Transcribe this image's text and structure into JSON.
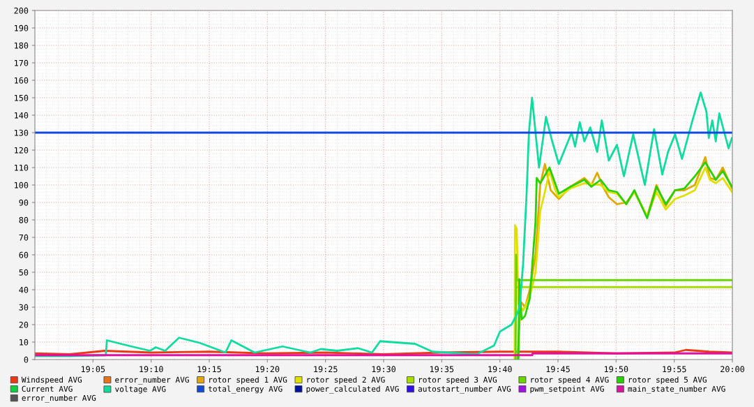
{
  "chart_data": {
    "type": "line",
    "xlim": [
      19.0,
      20.0
    ],
    "ylim": [
      0,
      200
    ],
    "xticks": [
      {
        "value": 19.0833,
        "label": "19:05"
      },
      {
        "value": 19.1667,
        "label": "19:10"
      },
      {
        "value": 19.25,
        "label": "19:15"
      },
      {
        "value": 19.3333,
        "label": "19:20"
      },
      {
        "value": 19.4167,
        "label": "19:25"
      },
      {
        "value": 19.5,
        "label": "19:30"
      },
      {
        "value": 19.5833,
        "label": "19:35"
      },
      {
        "value": 19.6667,
        "label": "19:40"
      },
      {
        "value": 19.75,
        "label": "19:45"
      },
      {
        "value": 19.8333,
        "label": "19:50"
      },
      {
        "value": 19.9167,
        "label": "19:55"
      },
      {
        "value": 20.0,
        "label": "20:00"
      }
    ],
    "yticks": [
      0,
      10,
      20,
      30,
      40,
      50,
      60,
      70,
      80,
      90,
      100,
      110,
      120,
      130,
      140,
      150,
      160,
      170,
      180,
      190,
      200
    ],
    "grid": true,
    "legend": "bottom",
    "series": [
      {
        "name": "Windspeed AVG",
        "color": "#ea3a14",
        "x": [
          19.0,
          19.05,
          19.1,
          19.1667,
          19.25,
          19.3333,
          19.4167,
          19.5,
          19.5833,
          19.6667,
          19.75,
          19.8333,
          19.9167,
          19.9333,
          19.9667,
          20.0
        ],
        "values": [
          3.5,
          3,
          5,
          4,
          4.5,
          3.5,
          4,
          3,
          4,
          4.5,
          4.5,
          3.5,
          4,
          5.5,
          4.5,
          4
        ]
      },
      {
        "name": "error_number AVG",
        "color": "#e87316",
        "values": [
          null
        ]
      },
      {
        "name": "rotor speed 1 AVG",
        "color": "#e0a800",
        "x": [
          19.6917,
          19.6967,
          19.7028,
          19.7095,
          19.7178,
          19.7245,
          19.7312,
          19.7395,
          19.7512,
          19.7678,
          19.7878,
          19.7978,
          19.8062,
          19.8145,
          19.8228,
          19.8345,
          19.8478,
          19.8595,
          19.8778,
          19.8912,
          19.9045,
          19.9178,
          19.9312,
          19.9462,
          19.9612,
          19.9678,
          19.9762,
          19.9862,
          19.9995
        ],
        "values": [
          0,
          33,
          30,
          40,
          60,
          100,
          112,
          97,
          92,
          99,
          104,
          100,
          107,
          99,
          93,
          89,
          90,
          96,
          82,
          100,
          88,
          97,
          97,
          100,
          116,
          104,
          103,
          110,
          98
        ]
      },
      {
        "name": "rotor speed 2 AVG",
        "color": "#e0e000",
        "x": [
          19.6878,
          19.6883,
          19.6908,
          19.6933,
          19.7,
          19.7095,
          19.7178,
          19.7245,
          19.7312,
          19.7378,
          19.7462,
          19.7512,
          19.7678,
          19.7878,
          19.8112,
          19.8228,
          19.8345,
          19.8478,
          19.8595,
          19.8778,
          19.8912,
          19.9045,
          19.9178,
          19.9312,
          19.9462,
          19.9612,
          19.9678,
          19.9762,
          19.9862,
          19.9995
        ],
        "values": [
          0,
          77,
          75,
          32,
          28,
          36,
          50,
          85,
          96,
          108,
          97,
          93,
          98,
          101,
          100,
          96,
          95,
          89,
          96,
          82,
          96,
          86,
          92,
          94,
          97,
          110,
          103,
          101,
          104,
          96
        ]
      },
      {
        "name": "rotor speed 3 AVG",
        "color": "#a8dc00",
        "x": [
          19.6908,
          20.0
        ],
        "values": [
          41.5,
          41.5
        ]
      },
      {
        "name": "rotor speed 4 AVG",
        "color": "#6ad400",
        "x": [
          19.6892,
          19.69,
          19.6908,
          20.0
        ],
        "values": [
          0,
          60,
          45.5,
          45.5
        ]
      },
      {
        "name": "rotor speed 5 AVG",
        "color": "#2ad000",
        "x": [
          19.6933,
          19.6945,
          19.6978,
          19.7028,
          19.7095,
          19.7178,
          19.7195,
          19.7245,
          19.7378,
          19.7512,
          19.7678,
          19.7878,
          19.7978,
          19.8112,
          19.8228,
          19.8345,
          19.8478,
          19.8595,
          19.8778,
          19.8912,
          19.9045,
          19.9178,
          19.9312,
          19.9462,
          19.9612,
          19.9762,
          19.9862,
          19.9995
        ],
        "values": [
          0,
          46,
          23,
          25,
          35,
          79,
          104,
          101,
          110,
          95,
          99,
          103,
          99,
          103,
          97,
          96,
          89,
          97,
          81,
          99,
          89,
          97,
          98,
          105,
          113,
          103,
          108,
          99
        ]
      },
      {
        "name": "Current AVG",
        "color": "#10d040",
        "values": [
          null
        ]
      },
      {
        "name": "voltage AVG",
        "color": "#10dca0",
        "x": [
          19.0,
          19.05,
          19.1017,
          19.1033,
          19.1333,
          19.165,
          19.1733,
          19.1867,
          19.2067,
          19.2367,
          19.2733,
          19.2817,
          19.315,
          19.355,
          19.395,
          19.41,
          19.4333,
          19.4633,
          19.4833,
          19.495,
          19.545,
          19.57,
          19.6333,
          19.6583,
          19.6667,
          19.675,
          19.6833,
          19.69,
          19.695,
          19.7,
          19.705,
          19.7083,
          19.7128,
          19.7228,
          19.7328,
          19.741,
          19.7512,
          19.7695,
          19.7745,
          19.7812,
          19.7878,
          19.7962,
          19.8062,
          19.8128,
          19.8228,
          19.8345,
          19.8445,
          19.8578,
          19.8745,
          19.8878,
          19.8995,
          19.9078,
          19.9178,
          19.9278,
          19.9428,
          19.9545,
          19.9628,
          19.9662,
          19.9712,
          19.9762,
          19.9812,
          19.9945,
          19.9995
        ],
        "values": [
          2,
          2,
          2.5,
          11,
          8,
          5,
          7,
          5,
          12.5,
          9.5,
          4,
          11,
          4,
          7.5,
          4,
          6,
          5,
          6.5,
          4,
          10.5,
          9,
          4.5,
          3,
          8,
          16,
          18,
          20,
          25,
          30,
          55,
          95,
          130,
          150,
          110,
          139,
          126,
          112,
          130,
          122,
          136,
          125,
          133,
          119,
          137,
          114,
          123,
          105,
          129,
          100,
          132,
          106,
          119,
          129,
          115,
          137,
          153,
          142,
          127,
          137,
          125,
          141,
          121,
          127
        ]
      },
      {
        "name": "total_energy AVG",
        "color": "#1048e0",
        "x": [
          19.0,
          20.0
        ],
        "values": [
          130,
          130
        ]
      },
      {
        "name": "power_calculated AVG",
        "color": "#0010a0",
        "values": [
          null
        ]
      },
      {
        "name": "autostart_number AVG",
        "color": "#3010e0",
        "values": [
          null
        ]
      },
      {
        "name": "pwm_setpoint AVG",
        "color": "#a010e0",
        "values": [
          null
        ]
      },
      {
        "name": "main_state_number AVG",
        "color": "#e010a0",
        "x": [
          19.0,
          19.7133,
          19.7135,
          20.0
        ],
        "values": [
          2.5,
          2.5,
          3.5,
          3.5
        ]
      },
      {
        "name": "error_number AVG",
        "color": "#555555",
        "values": [
          null
        ]
      }
    ]
  }
}
